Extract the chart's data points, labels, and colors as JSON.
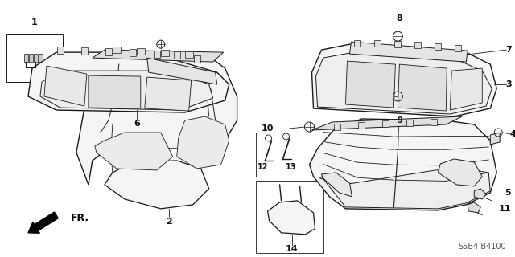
{
  "bg_color": "#ffffff",
  "line_color": "#1a1a1a",
  "fill_color": "#f5f5f5",
  "fill_dark": "#e0e0e0",
  "footer_right": "S5B4-B4100",
  "font_size_parts": 8,
  "label_color": "#111111"
}
